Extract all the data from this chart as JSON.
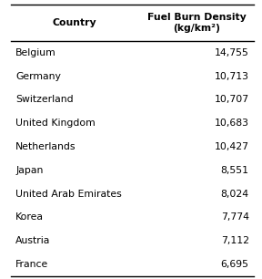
{
  "col1_header": "Country",
  "col2_header": "Fuel Burn Density\n(kg/km²)",
  "rows": [
    [
      "Belgium",
      "14,755"
    ],
    [
      "Germany",
      "10,713"
    ],
    [
      "Switzerland",
      "10,707"
    ],
    [
      "United Kingdom",
      "10,683"
    ],
    [
      "Netherlands",
      "10,427"
    ],
    [
      "Japan",
      "8,551"
    ],
    [
      "United Arab Emirates",
      "8,024"
    ],
    [
      "Korea",
      "7,774"
    ],
    [
      "Austria",
      "7,112"
    ],
    [
      "France",
      "6,695"
    ]
  ],
  "background_color": "#ffffff",
  "header_fontsize": 7.8,
  "cell_fontsize": 7.8,
  "header_fontweight": "bold",
  "line_color": "#000000",
  "line_width": 1.0,
  "figwidth_in": 2.88,
  "figheight_in": 3.06,
  "dpi": 100
}
